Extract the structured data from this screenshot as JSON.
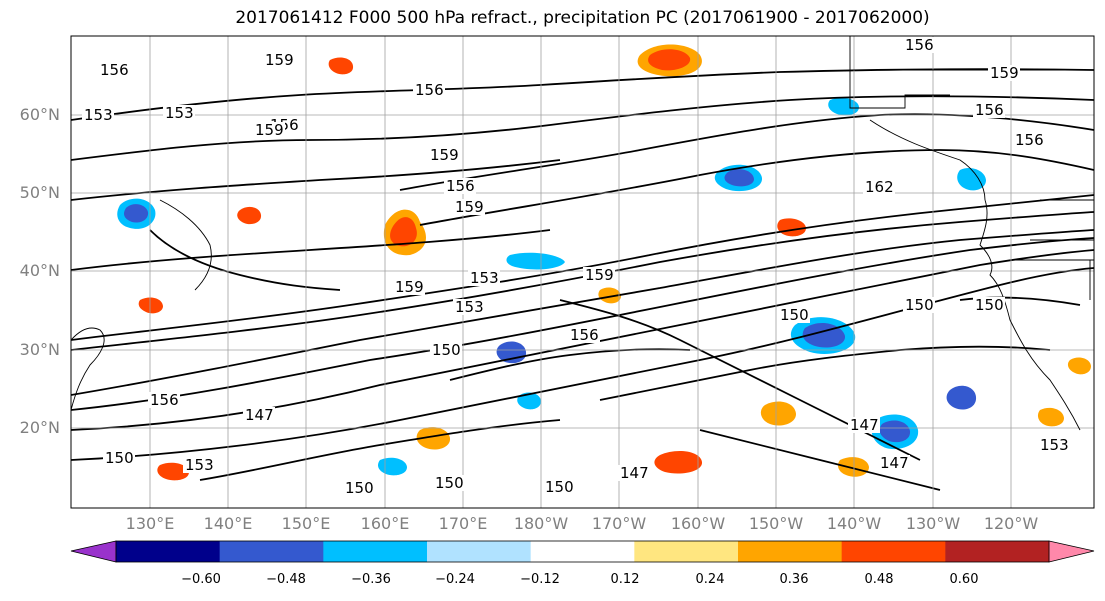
{
  "title": "2017061412 F000 500 hPa refract., precipitation PC (2017061900 - 2017062000)",
  "map": {
    "lat_labels": [
      "60°N",
      "50°N",
      "40°N",
      "30°N",
      "20°N"
    ],
    "lon_labels": [
      "130°E",
      "140°E",
      "150°E",
      "160°E",
      "170°E",
      "180°W",
      "170°W",
      "160°W",
      "150°W",
      "140°W",
      "130°W",
      "120°W"
    ],
    "contour_labels": [
      "156",
      "153",
      "159",
      "156",
      "153",
      "156",
      "159",
      "156",
      "159",
      "159",
      "156",
      "159",
      "156",
      "156",
      "162",
      "153",
      "159",
      "159",
      "153",
      "150",
      "156",
      "150",
      "150",
      "150",
      "147",
      "156",
      "150",
      "153",
      "147",
      "147",
      "147",
      "150",
      "150",
      "150",
      "153"
    ]
  },
  "colorbar": {
    "colors": [
      "#9932cc",
      "#00008b",
      "#3459cf",
      "#00bfff",
      "#b0e2ff",
      "#ffffff",
      "#ffe680",
      "#ffa500",
      "#ff4500",
      "#b22222",
      "#ff88aa"
    ],
    "ticks": [
      "−0.60",
      "−0.48",
      "−0.36",
      "−0.24",
      "−0.12",
      "0.12",
      "0.24",
      "0.36",
      "0.48",
      "0.60"
    ]
  }
}
